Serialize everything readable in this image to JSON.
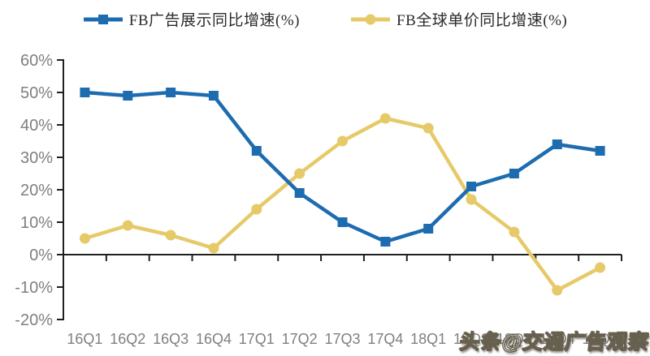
{
  "legend": {
    "items": [
      {
        "label": "FB广告展示同比增速(%)",
        "marker": "square",
        "color": "#1E6CB0"
      },
      {
        "label": "FB全球单价同比增速(%)",
        "marker": "circle",
        "color": "#E6CA69"
      }
    ]
  },
  "watermark": {
    "text": "头条@交通广告观察"
  },
  "chart_data": {
    "type": "line",
    "title": "",
    "xlabel": "",
    "ylabel": "",
    "grid": false,
    "legend_position": "top",
    "categories": [
      "16Q1",
      "16Q2",
      "16Q3",
      "16Q4",
      "17Q1",
      "17Q2",
      "17Q3",
      "17Q4",
      "18Q1",
      "18Q2",
      "18Q3",
      "18Q4",
      "19Q1"
    ],
    "series": [
      {
        "name": "FB广告展示同比增速(%)",
        "color": "#1E6CB0",
        "marker": "square",
        "values": [
          50,
          49,
          50,
          49,
          32,
          19,
          10,
          4,
          8,
          21,
          25,
          34,
          32
        ]
      },
      {
        "name": "FB全球单价同比增速(%)",
        "color": "#E6CA69",
        "marker": "circle",
        "values": [
          5,
          9,
          6,
          2,
          14,
          25,
          35,
          42,
          39,
          17,
          7,
          -11,
          -4
        ]
      }
    ],
    "ylim": [
      -20,
      60
    ],
    "yticks": [
      60,
      50,
      40,
      30,
      20,
      10,
      0,
      -10,
      -20
    ],
    "ytick_labels": [
      "60%",
      "50%",
      "40%",
      "30%",
      "20%",
      "10%",
      "0%",
      "-10%",
      "-20%"
    ],
    "axis_color": "#1f1f1f",
    "tick_label_color": "#7f7f7f"
  }
}
